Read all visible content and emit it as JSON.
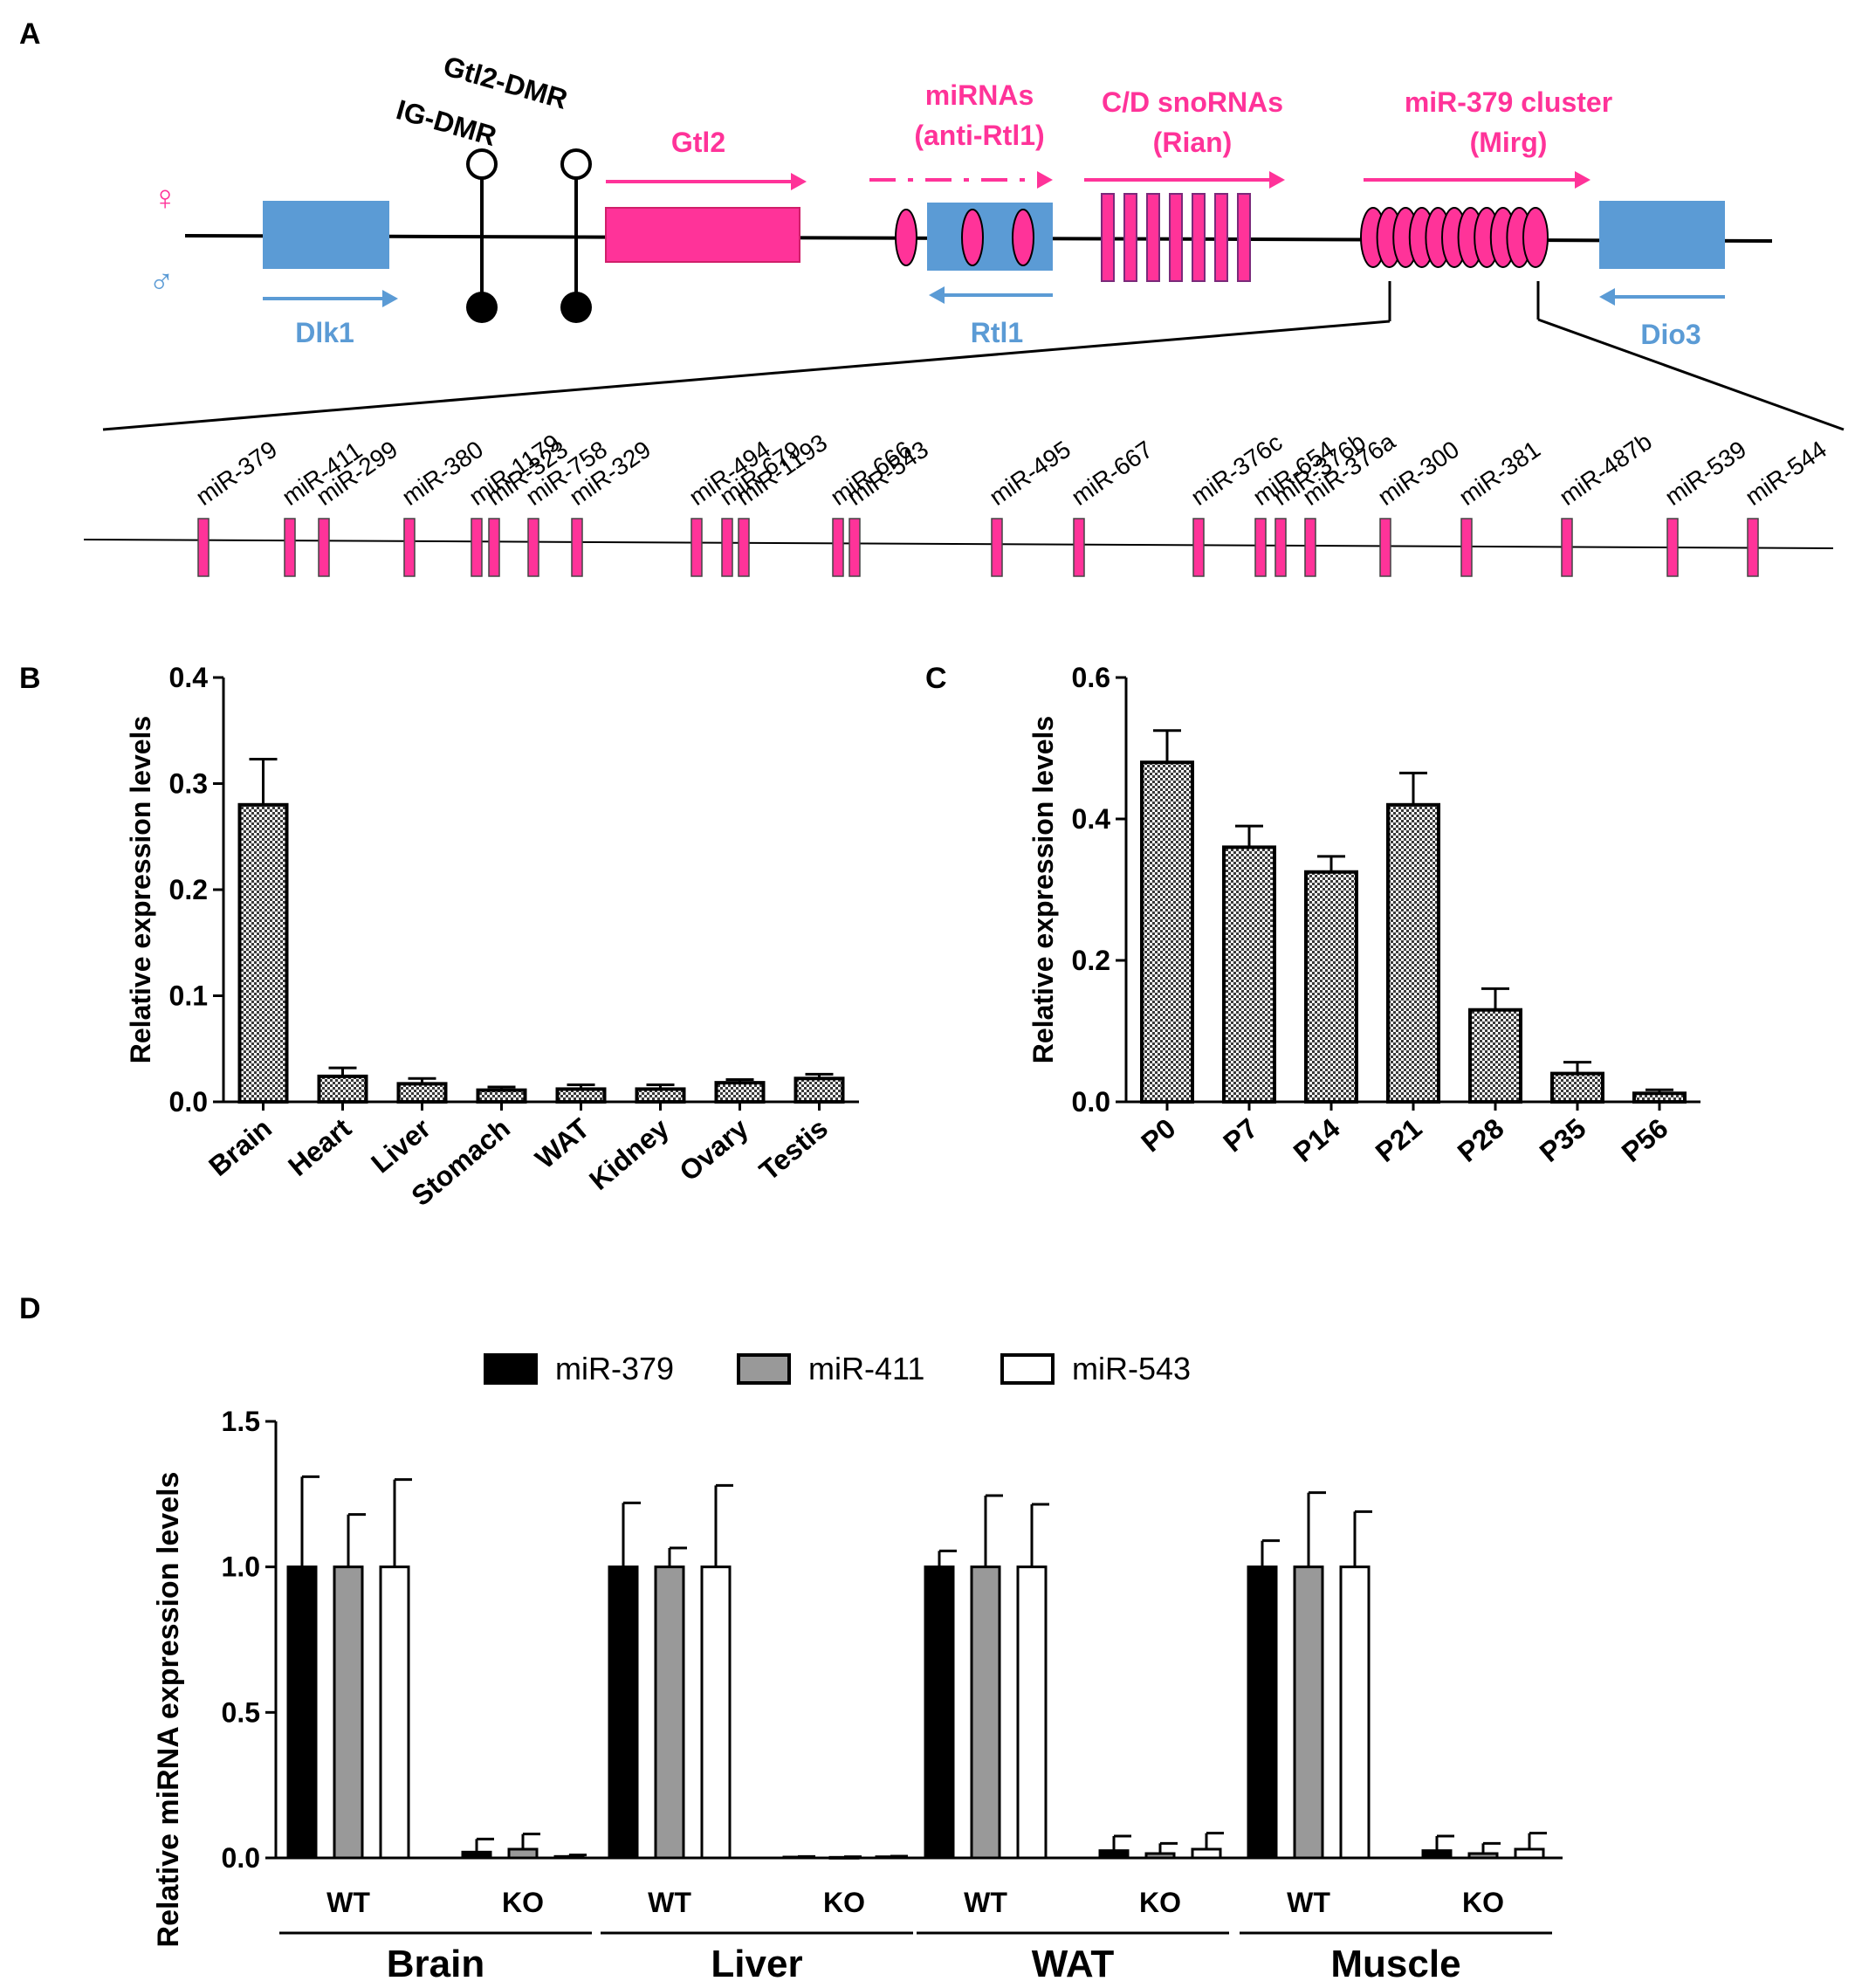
{
  "panels": {
    "a": "A",
    "b": "B",
    "c": "C",
    "d": "D"
  },
  "colors": {
    "pink": "#ff3399",
    "blue": "#5b9bd5",
    "black": "#000000",
    "gray": "#999999",
    "white": "#ffffff"
  },
  "panel_a": {
    "female_symbol": "♀",
    "male_symbol": "♂",
    "genes": {
      "dlk1": "Dlk1",
      "ig_dmr": "IG-DMR",
      "gtl2_dmr": "Gtl2-DMR",
      "gtl2": "Gtl2",
      "mirnas_line1": "miRNAs",
      "mirnas_line2": "(anti-Rtl1)",
      "rtl1": "Rtl1",
      "snorna_line1": "C/D snoRNAs",
      "snorna_line2": "(Rian)",
      "cluster_line1": "miR-379 cluster",
      "cluster_line2": "(Mirg)",
      "dio3": "Dio3"
    },
    "mirna_labels": [
      "miR-379",
      "miR-411",
      "miR-299",
      "miR-380",
      "miR-1179",
      "miR-323",
      "miR-758",
      "miR-329",
      "miR-494",
      "miR-679",
      "miR-1193",
      "miR-666",
      "miR-543",
      "miR-495",
      "miR-667",
      "miR-376c",
      "miR-654",
      "miR-376b",
      "miR-376a",
      "miR-300",
      "miR-381",
      "miR-487b",
      "miR-539",
      "miR-544"
    ]
  },
  "chart_data": [
    {
      "id": "B",
      "type": "bar",
      "categories": [
        "Brain",
        "Heart",
        "Liver",
        "Stomach",
        "WAT",
        "Kidney",
        "Ovary",
        "Testis"
      ],
      "values": [
        0.28,
        0.024,
        0.017,
        0.011,
        0.012,
        0.012,
        0.018,
        0.022
      ],
      "errors": [
        0.043,
        0.008,
        0.005,
        0.003,
        0.004,
        0.004,
        0.003,
        0.004
      ],
      "ylabel": "Relative expression levels",
      "ylim": [
        0,
        0.4
      ],
      "yticks": [
        "0.0",
        "0.1",
        "0.2",
        "0.3",
        "0.4"
      ]
    },
    {
      "id": "C",
      "type": "bar",
      "categories": [
        "P0",
        "P7",
        "P14",
        "P21",
        "P28",
        "P35",
        "P56"
      ],
      "values": [
        0.48,
        0.36,
        0.325,
        0.42,
        0.13,
        0.04,
        0.012
      ],
      "errors": [
        0.045,
        0.03,
        0.022,
        0.045,
        0.03,
        0.016,
        0.005
      ],
      "ylabel": "Relative expression levels",
      "ylim": [
        0,
        0.6
      ],
      "yticks": [
        "0.0",
        "0.2",
        "0.4",
        "0.6"
      ]
    },
    {
      "id": "D",
      "type": "bar",
      "ylabel": "Relative miRNA expression levels",
      "ylim": [
        0,
        1.5
      ],
      "yticks": [
        "0.0",
        "0.5",
        "1.0",
        "1.5"
      ],
      "legend": [
        "miR-379",
        "miR-411",
        "miR-543"
      ],
      "groups": [
        {
          "tissue": "Brain",
          "conditions": [
            {
              "label": "WT",
              "values": [
                1.0,
                1.0,
                1.0
              ],
              "errors": [
                0.31,
                0.18,
                0.3
              ]
            },
            {
              "label": "KO",
              "values": [
                0.02,
                0.03,
                0.005
              ],
              "errors": [
                0.045,
                0.052,
                0.005
              ]
            }
          ]
        },
        {
          "tissue": "Liver",
          "conditions": [
            {
              "label": "WT",
              "values": [
                1.0,
                1.0,
                1.0
              ],
              "errors": [
                0.22,
                0.065,
                0.28
              ]
            },
            {
              "label": "KO",
              "values": [
                0.003,
                0.002,
                0.004
              ],
              "errors": [
                0.002,
                0.002,
                0.002
              ]
            }
          ]
        },
        {
          "tissue": "WAT",
          "conditions": [
            {
              "label": "WT",
              "values": [
                1.0,
                1.0,
                1.0
              ],
              "errors": [
                0.055,
                0.245,
                0.215
              ]
            },
            {
              "label": "KO",
              "values": [
                0.025,
                0.015,
                0.03
              ],
              "errors": [
                0.05,
                0.035,
                0.055
              ]
            }
          ]
        },
        {
          "tissue": "Muscle",
          "conditions": [
            {
              "label": "WT",
              "values": [
                1.0,
                1.0,
                1.0
              ],
              "errors": [
                0.09,
                0.255,
                0.19
              ]
            },
            {
              "label": "KO",
              "values": [
                0.025,
                0.015,
                0.03
              ],
              "errors": [
                0.05,
                0.035,
                0.055
              ]
            }
          ]
        }
      ]
    }
  ]
}
